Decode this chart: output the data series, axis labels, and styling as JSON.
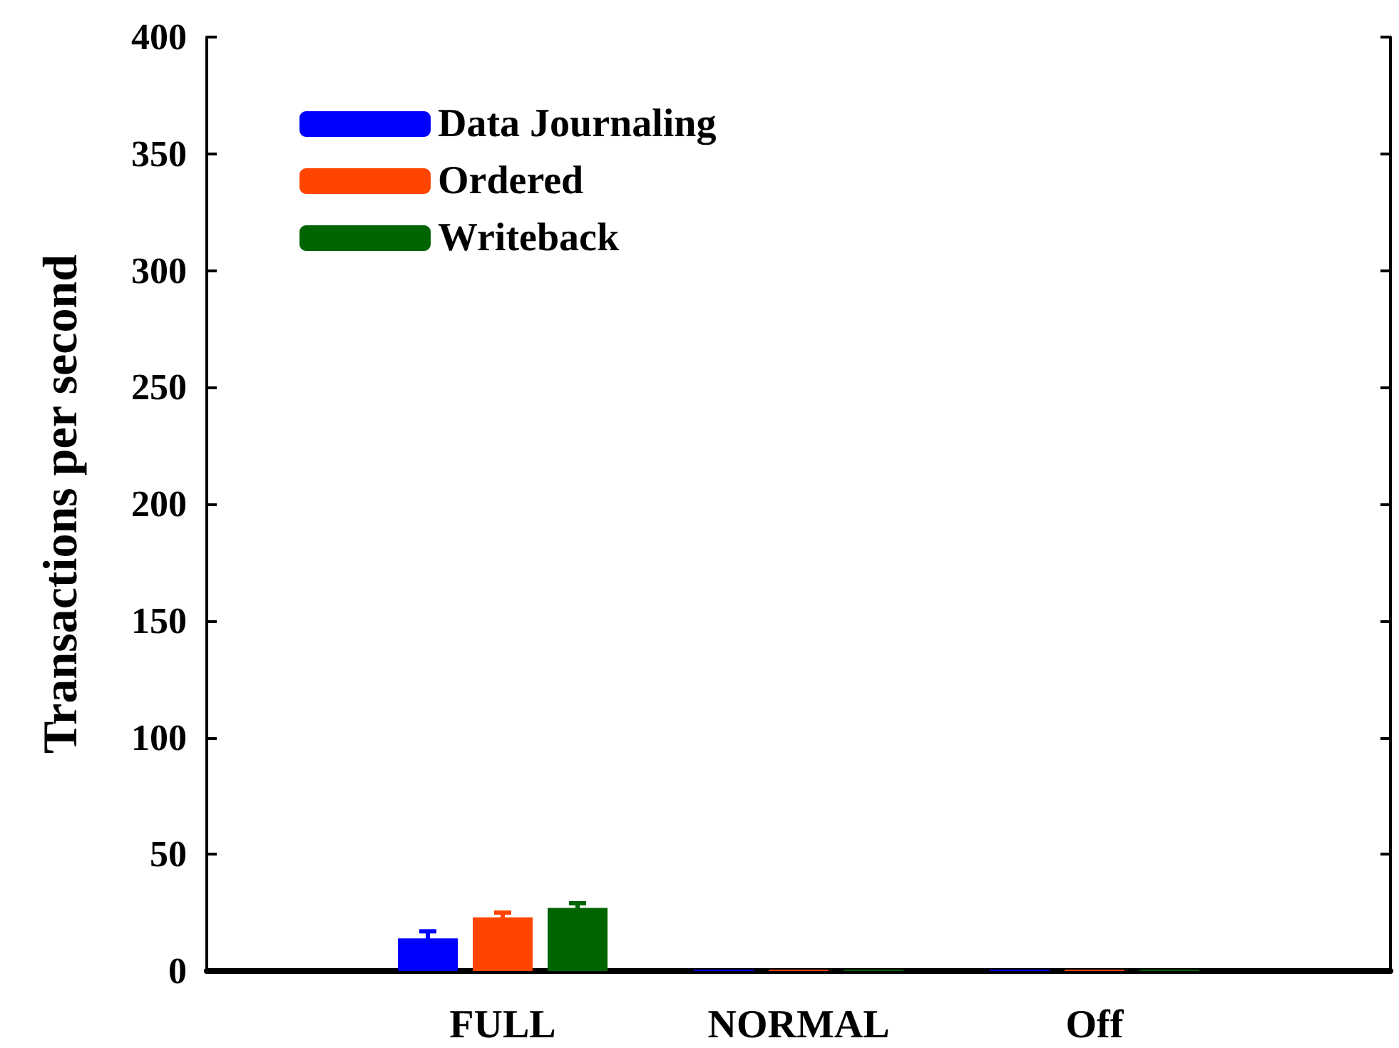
{
  "chart_data": {
    "type": "bar",
    "ylabel": "Transactions per second",
    "categories": [
      null,
      "FULL",
      "NORMAL",
      "Off",
      null
    ],
    "series": [
      {
        "name": "Data Journaling",
        "color": "#0000ff",
        "values": [
          null,
          14,
          0.5,
          0.5,
          null
        ],
        "errors": [
          null,
          3,
          null,
          null,
          null
        ]
      },
      {
        "name": "Ordered",
        "color": "#ff4500",
        "values": [
          null,
          23,
          0.5,
          0.5,
          null
        ],
        "errors": [
          null,
          2,
          null,
          null,
          null
        ]
      },
      {
        "name": "Writeback",
        "color": "#006400",
        "values": [
          null,
          27,
          0.5,
          0.5,
          null
        ],
        "errors": [
          null,
          2,
          null,
          null,
          null
        ]
      }
    ],
    "ylim": [
      0,
      400
    ],
    "yticks": [
      0,
      50,
      100,
      150,
      200,
      250,
      300,
      350,
      400
    ],
    "grid": false,
    "legend": "top left"
  }
}
